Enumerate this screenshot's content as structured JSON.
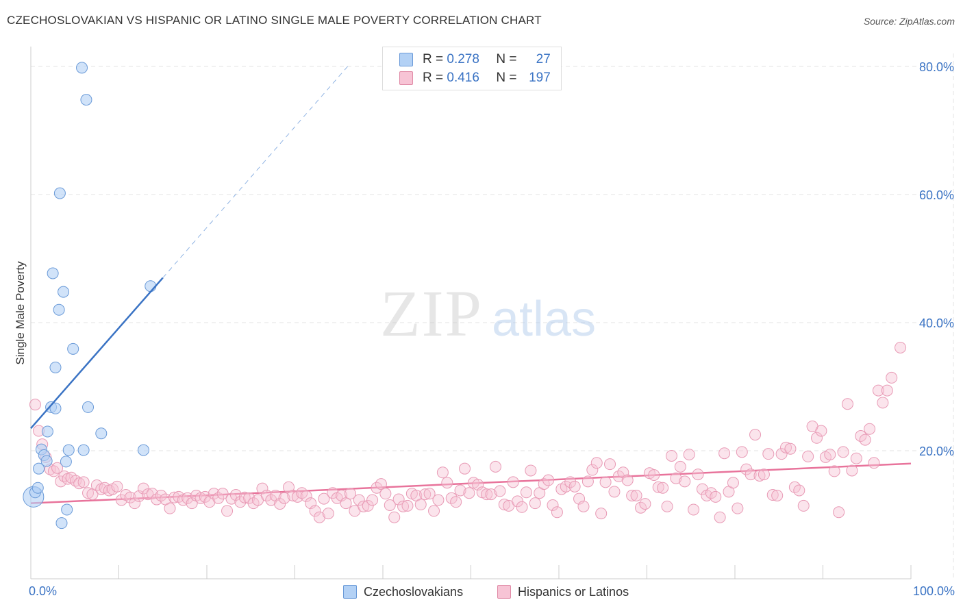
{
  "title": "CZECHOSLOVAKIAN VS HISPANIC OR LATINO SINGLE MALE POVERTY CORRELATION CHART",
  "source": "Source: ZipAtlas.com",
  "watermark": {
    "zip": "ZIP",
    "atlas": "atlas"
  },
  "legend": {
    "r_label": "R =",
    "n_label": "N =",
    "items": [
      {
        "name": "Czechoslovakians",
        "r": "0.278",
        "n": "27",
        "fill": "#b3d1f5",
        "stroke": "#6a9ad8"
      },
      {
        "name": "Hispanics or Latinos",
        "r": "0.416",
        "n": "197",
        "fill": "#f7c4d5",
        "stroke": "#e08aa6"
      }
    ]
  },
  "chart_data": {
    "type": "scatter",
    "title": "CZECHOSLOVAKIAN VS HISPANIC OR LATINO SINGLE MALE POVERTY CORRELATION CHART",
    "xlabel": "",
    "ylabel": "Single Male Poverty",
    "xlim": [
      0,
      100
    ],
    "ylim": [
      0,
      80
    ],
    "x_tick_labels": [
      "0.0%",
      "100.0%"
    ],
    "y_ticks": [
      20,
      40,
      60,
      80
    ],
    "y_tick_labels": [
      "20.0%",
      "40.0%",
      "60.0%",
      "80.0%"
    ],
    "grid": true,
    "colors": {
      "blue": "#3a73c4",
      "pink": "#e8739b",
      "tick_text": "#3a73c4"
    },
    "series": [
      {
        "name": "Czechoslovakians",
        "points": [
          [
            0.3,
            12.8
          ],
          [
            0.5,
            13.5
          ],
          [
            0.8,
            14.2
          ],
          [
            0.9,
            17.2
          ],
          [
            1.2,
            20.2
          ],
          [
            1.5,
            19.3
          ],
          [
            1.9,
            23.0
          ],
          [
            1.8,
            18.4
          ],
          [
            2.3,
            26.8
          ],
          [
            2.5,
            47.7
          ],
          [
            2.8,
            26.6
          ],
          [
            2.8,
            33.0
          ],
          [
            3.2,
            42.0
          ],
          [
            3.3,
            60.2
          ],
          [
            3.5,
            8.7
          ],
          [
            3.7,
            44.8
          ],
          [
            4.1,
            10.8
          ],
          [
            4.3,
            20.1
          ],
          [
            4.8,
            35.9
          ],
          [
            5.8,
            79.8
          ],
          [
            6.0,
            20.1
          ],
          [
            6.3,
            74.8
          ],
          [
            6.5,
            26.8
          ],
          [
            8.0,
            22.7
          ],
          [
            12.8,
            20.1
          ],
          [
            13.6,
            45.7
          ],
          [
            4.0,
            18.3
          ]
        ],
        "trend": {
          "x0": 0,
          "y0": 23.5,
          "x1": 15,
          "y1": 47.0,
          "x_dash_end": 36,
          "y_dash_end": 80
        }
      },
      {
        "name": "Hispanics or Latinos",
        "points": [
          [
            0.5,
            27.2
          ],
          [
            0.9,
            23.1
          ],
          [
            1.3,
            21.0
          ],
          [
            1.7,
            19.0
          ],
          [
            2.2,
            17.1
          ],
          [
            2.6,
            16.8
          ],
          [
            3.0,
            17.3
          ],
          [
            3.4,
            15.2
          ],
          [
            3.8,
            16.0
          ],
          [
            4.2,
            15.6
          ],
          [
            4.6,
            15.8
          ],
          [
            5.1,
            15.3
          ],
          [
            5.5,
            14.9
          ],
          [
            6.0,
            15.1
          ],
          [
            6.5,
            13.4
          ],
          [
            7.0,
            13.2
          ],
          [
            7.5,
            14.6
          ],
          [
            8.0,
            14.0
          ],
          [
            8.4,
            14.2
          ],
          [
            8.9,
            13.8
          ],
          [
            9.3,
            14.0
          ],
          [
            9.8,
            14.4
          ],
          [
            10.3,
            12.3
          ],
          [
            10.8,
            13.1
          ],
          [
            11.3,
            12.7
          ],
          [
            11.8,
            11.8
          ],
          [
            12.3,
            12.9
          ],
          [
            12.8,
            14.1
          ],
          [
            13.3,
            13.2
          ],
          [
            13.8,
            13.3
          ],
          [
            14.3,
            12.4
          ],
          [
            14.8,
            13.0
          ],
          [
            15.3,
            12.4
          ],
          [
            15.8,
            11.0
          ],
          [
            16.3,
            12.7
          ],
          [
            16.8,
            12.8
          ],
          [
            17.3,
            12.3
          ],
          [
            17.8,
            12.6
          ],
          [
            18.3,
            11.8
          ],
          [
            18.8,
            13.0
          ],
          [
            19.3,
            12.6
          ],
          [
            19.8,
            12.8
          ],
          [
            20.3,
            12.0
          ],
          [
            20.8,
            13.3
          ],
          [
            21.3,
            12.6
          ],
          [
            21.8,
            13.3
          ],
          [
            22.3,
            10.6
          ],
          [
            22.8,
            12.5
          ],
          [
            23.3,
            13.1
          ],
          [
            23.8,
            12.0
          ],
          [
            24.3,
            12.7
          ],
          [
            24.8,
            12.6
          ],
          [
            25.3,
            11.8
          ],
          [
            25.8,
            12.3
          ],
          [
            26.3,
            14.1
          ],
          [
            26.8,
            13.0
          ],
          [
            27.3,
            12.3
          ],
          [
            27.8,
            13.0
          ],
          [
            28.3,
            11.7
          ],
          [
            28.8,
            12.6
          ],
          [
            29.3,
            14.3
          ],
          [
            29.8,
            13.0
          ],
          [
            30.3,
            12.8
          ],
          [
            30.8,
            13.4
          ],
          [
            31.3,
            12.9
          ],
          [
            31.8,
            11.8
          ],
          [
            32.3,
            10.6
          ],
          [
            32.8,
            9.6
          ],
          [
            33.3,
            12.5
          ],
          [
            33.8,
            10.2
          ],
          [
            34.3,
            13.4
          ],
          [
            34.8,
            12.6
          ],
          [
            35.3,
            13.0
          ],
          [
            35.8,
            11.8
          ],
          [
            36.3,
            13.3
          ],
          [
            36.8,
            10.6
          ],
          [
            37.3,
            12.3
          ],
          [
            37.8,
            11.3
          ],
          [
            38.3,
            11.4
          ],
          [
            38.8,
            12.3
          ],
          [
            39.3,
            14.2
          ],
          [
            39.8,
            14.8
          ],
          [
            40.3,
            13.3
          ],
          [
            40.8,
            11.5
          ],
          [
            41.3,
            9.6
          ],
          [
            41.8,
            12.4
          ],
          [
            42.3,
            11.3
          ],
          [
            42.8,
            11.4
          ],
          [
            43.3,
            13.3
          ],
          [
            43.8,
            13.0
          ],
          [
            44.3,
            11.6
          ],
          [
            44.8,
            13.2
          ],
          [
            45.3,
            13.3
          ],
          [
            45.8,
            10.6
          ],
          [
            46.3,
            12.3
          ],
          [
            46.8,
            16.6
          ],
          [
            47.3,
            15.0
          ],
          [
            47.8,
            12.6
          ],
          [
            48.3,
            12.0
          ],
          [
            48.8,
            13.8
          ],
          [
            49.3,
            17.2
          ],
          [
            49.8,
            13.4
          ],
          [
            50.3,
            15.0
          ],
          [
            50.8,
            14.7
          ],
          [
            51.3,
            13.5
          ],
          [
            51.8,
            13.2
          ],
          [
            52.3,
            13.2
          ],
          [
            52.8,
            17.5
          ],
          [
            53.3,
            13.7
          ],
          [
            53.8,
            11.6
          ],
          [
            54.3,
            11.4
          ],
          [
            54.8,
            15.1
          ],
          [
            55.3,
            12.1
          ],
          [
            55.8,
            11.2
          ],
          [
            56.3,
            13.5
          ],
          [
            56.8,
            16.9
          ],
          [
            57.3,
            11.8
          ],
          [
            57.8,
            13.4
          ],
          [
            58.3,
            14.8
          ],
          [
            58.8,
            15.4
          ],
          [
            59.3,
            11.5
          ],
          [
            59.8,
            10.4
          ],
          [
            60.3,
            14.0
          ],
          [
            60.8,
            14.4
          ],
          [
            61.3,
            15.1
          ],
          [
            61.8,
            14.4
          ],
          [
            62.3,
            12.5
          ],
          [
            62.8,
            11.3
          ],
          [
            63.3,
            15.2
          ],
          [
            63.8,
            17.0
          ],
          [
            64.3,
            18.1
          ],
          [
            64.8,
            10.2
          ],
          [
            65.3,
            15.1
          ],
          [
            65.8,
            17.9
          ],
          [
            66.3,
            13.6
          ],
          [
            66.8,
            16.0
          ],
          [
            67.3,
            16.6
          ],
          [
            67.8,
            15.4
          ],
          [
            68.3,
            13.0
          ],
          [
            68.8,
            13.0
          ],
          [
            69.3,
            11.1
          ],
          [
            69.8,
            11.7
          ],
          [
            70.3,
            16.5
          ],
          [
            70.8,
            16.2
          ],
          [
            71.3,
            14.3
          ],
          [
            71.8,
            14.2
          ],
          [
            72.3,
            11.3
          ],
          [
            72.8,
            19.2
          ],
          [
            73.3,
            15.7
          ],
          [
            73.8,
            17.5
          ],
          [
            74.3,
            15.2
          ],
          [
            74.8,
            19.4
          ],
          [
            75.3,
            10.8
          ],
          [
            75.8,
            16.3
          ],
          [
            76.3,
            14.0
          ],
          [
            76.8,
            13.0
          ],
          [
            77.3,
            13.4
          ],
          [
            77.8,
            12.8
          ],
          [
            78.3,
            9.6
          ],
          [
            78.8,
            19.6
          ],
          [
            79.3,
            13.6
          ],
          [
            79.8,
            15.0
          ],
          [
            80.3,
            11.0
          ],
          [
            80.8,
            19.8
          ],
          [
            81.3,
            17.1
          ],
          [
            81.8,
            16.3
          ],
          [
            82.3,
            22.5
          ],
          [
            82.8,
            16.1
          ],
          [
            83.3,
            16.3
          ],
          [
            83.8,
            19.5
          ],
          [
            84.3,
            13.1
          ],
          [
            84.8,
            13.0
          ],
          [
            85.3,
            19.5
          ],
          [
            85.8,
            20.5
          ],
          [
            86.3,
            20.3
          ],
          [
            86.8,
            14.3
          ],
          [
            87.3,
            13.8
          ],
          [
            87.8,
            11.4
          ],
          [
            88.3,
            19.1
          ],
          [
            88.8,
            23.8
          ],
          [
            89.3,
            22.0
          ],
          [
            89.8,
            23.1
          ],
          [
            90.3,
            19.0
          ],
          [
            90.8,
            19.4
          ],
          [
            91.3,
            16.8
          ],
          [
            91.8,
            10.4
          ],
          [
            92.3,
            19.8
          ],
          [
            92.8,
            27.3
          ],
          [
            93.3,
            16.9
          ],
          [
            93.8,
            18.8
          ],
          [
            94.3,
            22.3
          ],
          [
            94.8,
            21.7
          ],
          [
            95.3,
            23.4
          ],
          [
            96.3,
            29.4
          ],
          [
            96.8,
            27.5
          ],
          [
            97.3,
            29.4
          ],
          [
            97.8,
            31.4
          ],
          [
            98.8,
            36.1
          ],
          [
            95.8,
            18.1
          ]
        ],
        "trend": {
          "x0": 0,
          "y0": 11.8,
          "x1": 100,
          "y1": 18.0
        }
      }
    ]
  }
}
